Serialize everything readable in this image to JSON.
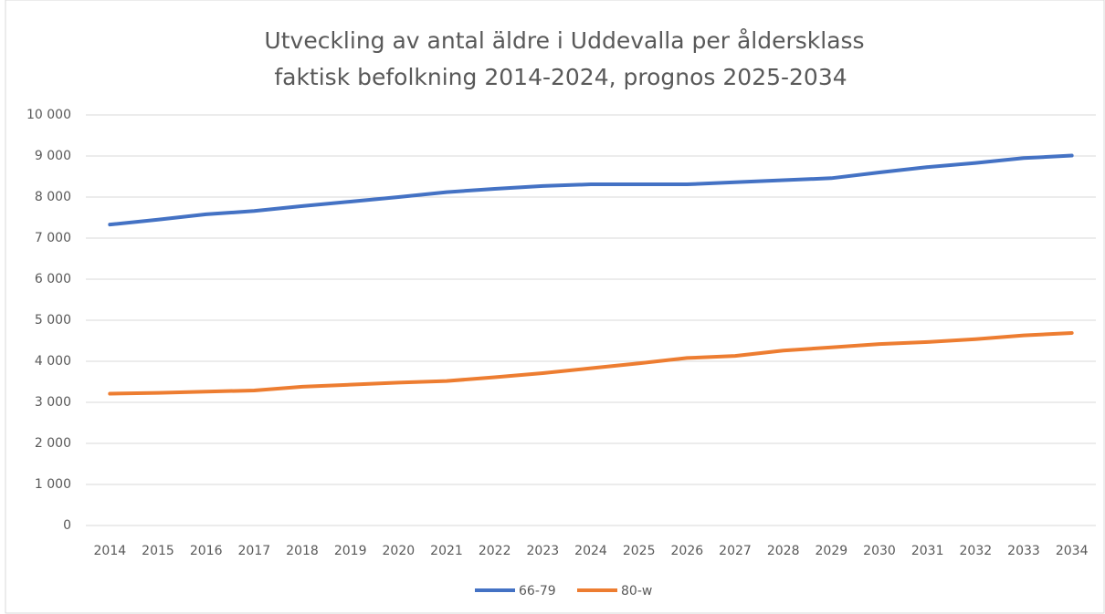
{
  "chart_data": {
    "type": "line",
    "title": "Utveckling av antal äldre i Uddevalla per åldersklass",
    "subtitle": "faktisk befolkning 2014-2024, prognos 2025-2034",
    "categories": [
      "2014",
      "2015",
      "2016",
      "2017",
      "2018",
      "2019",
      "2020",
      "2021",
      "2022",
      "2023",
      "2024",
      "2025",
      "2026",
      "2027",
      "2028",
      "2029",
      "2030",
      "2031",
      "2032",
      "2033",
      "2034"
    ],
    "series": [
      {
        "name": "66-79",
        "color": "#4472c4",
        "values": [
          7330,
          7450,
          7580,
          7660,
          7780,
          7890,
          8000,
          8120,
          8200,
          8270,
          8310,
          8310,
          8310,
          8360,
          8410,
          8460,
          8600,
          8730,
          8830,
          8950,
          9010
        ]
      },
      {
        "name": "80-w",
        "color": "#ed7d31",
        "values": [
          3210,
          3230,
          3260,
          3290,
          3380,
          3430,
          3480,
          3520,
          3610,
          3710,
          3830,
          3950,
          4080,
          4130,
          4260,
          4340,
          4420,
          4470,
          4540,
          4630,
          4690
        ]
      }
    ],
    "ylim": [
      0,
      10000
    ],
    "yticks": [
      0,
      {
        "value": 1000,
        "label": "1 000"
      },
      {
        "value": 2000,
        "label": "2 000"
      },
      {
        "value": 3000,
        "label": "3 000"
      },
      {
        "value": 4000,
        "label": "4 000"
      },
      {
        "value": 5000,
        "label": "5 000"
      },
      {
        "value": 6000,
        "label": "6 000"
      },
      {
        "value": 7000,
        "label": "7 000"
      },
      {
        "value": 8000,
        "label": "8 000"
      },
      {
        "value": 9000,
        "label": "9 000"
      },
      {
        "value": 10000,
        "label": "10 000"
      }
    ],
    "grid": true,
    "legend": "bottom"
  }
}
